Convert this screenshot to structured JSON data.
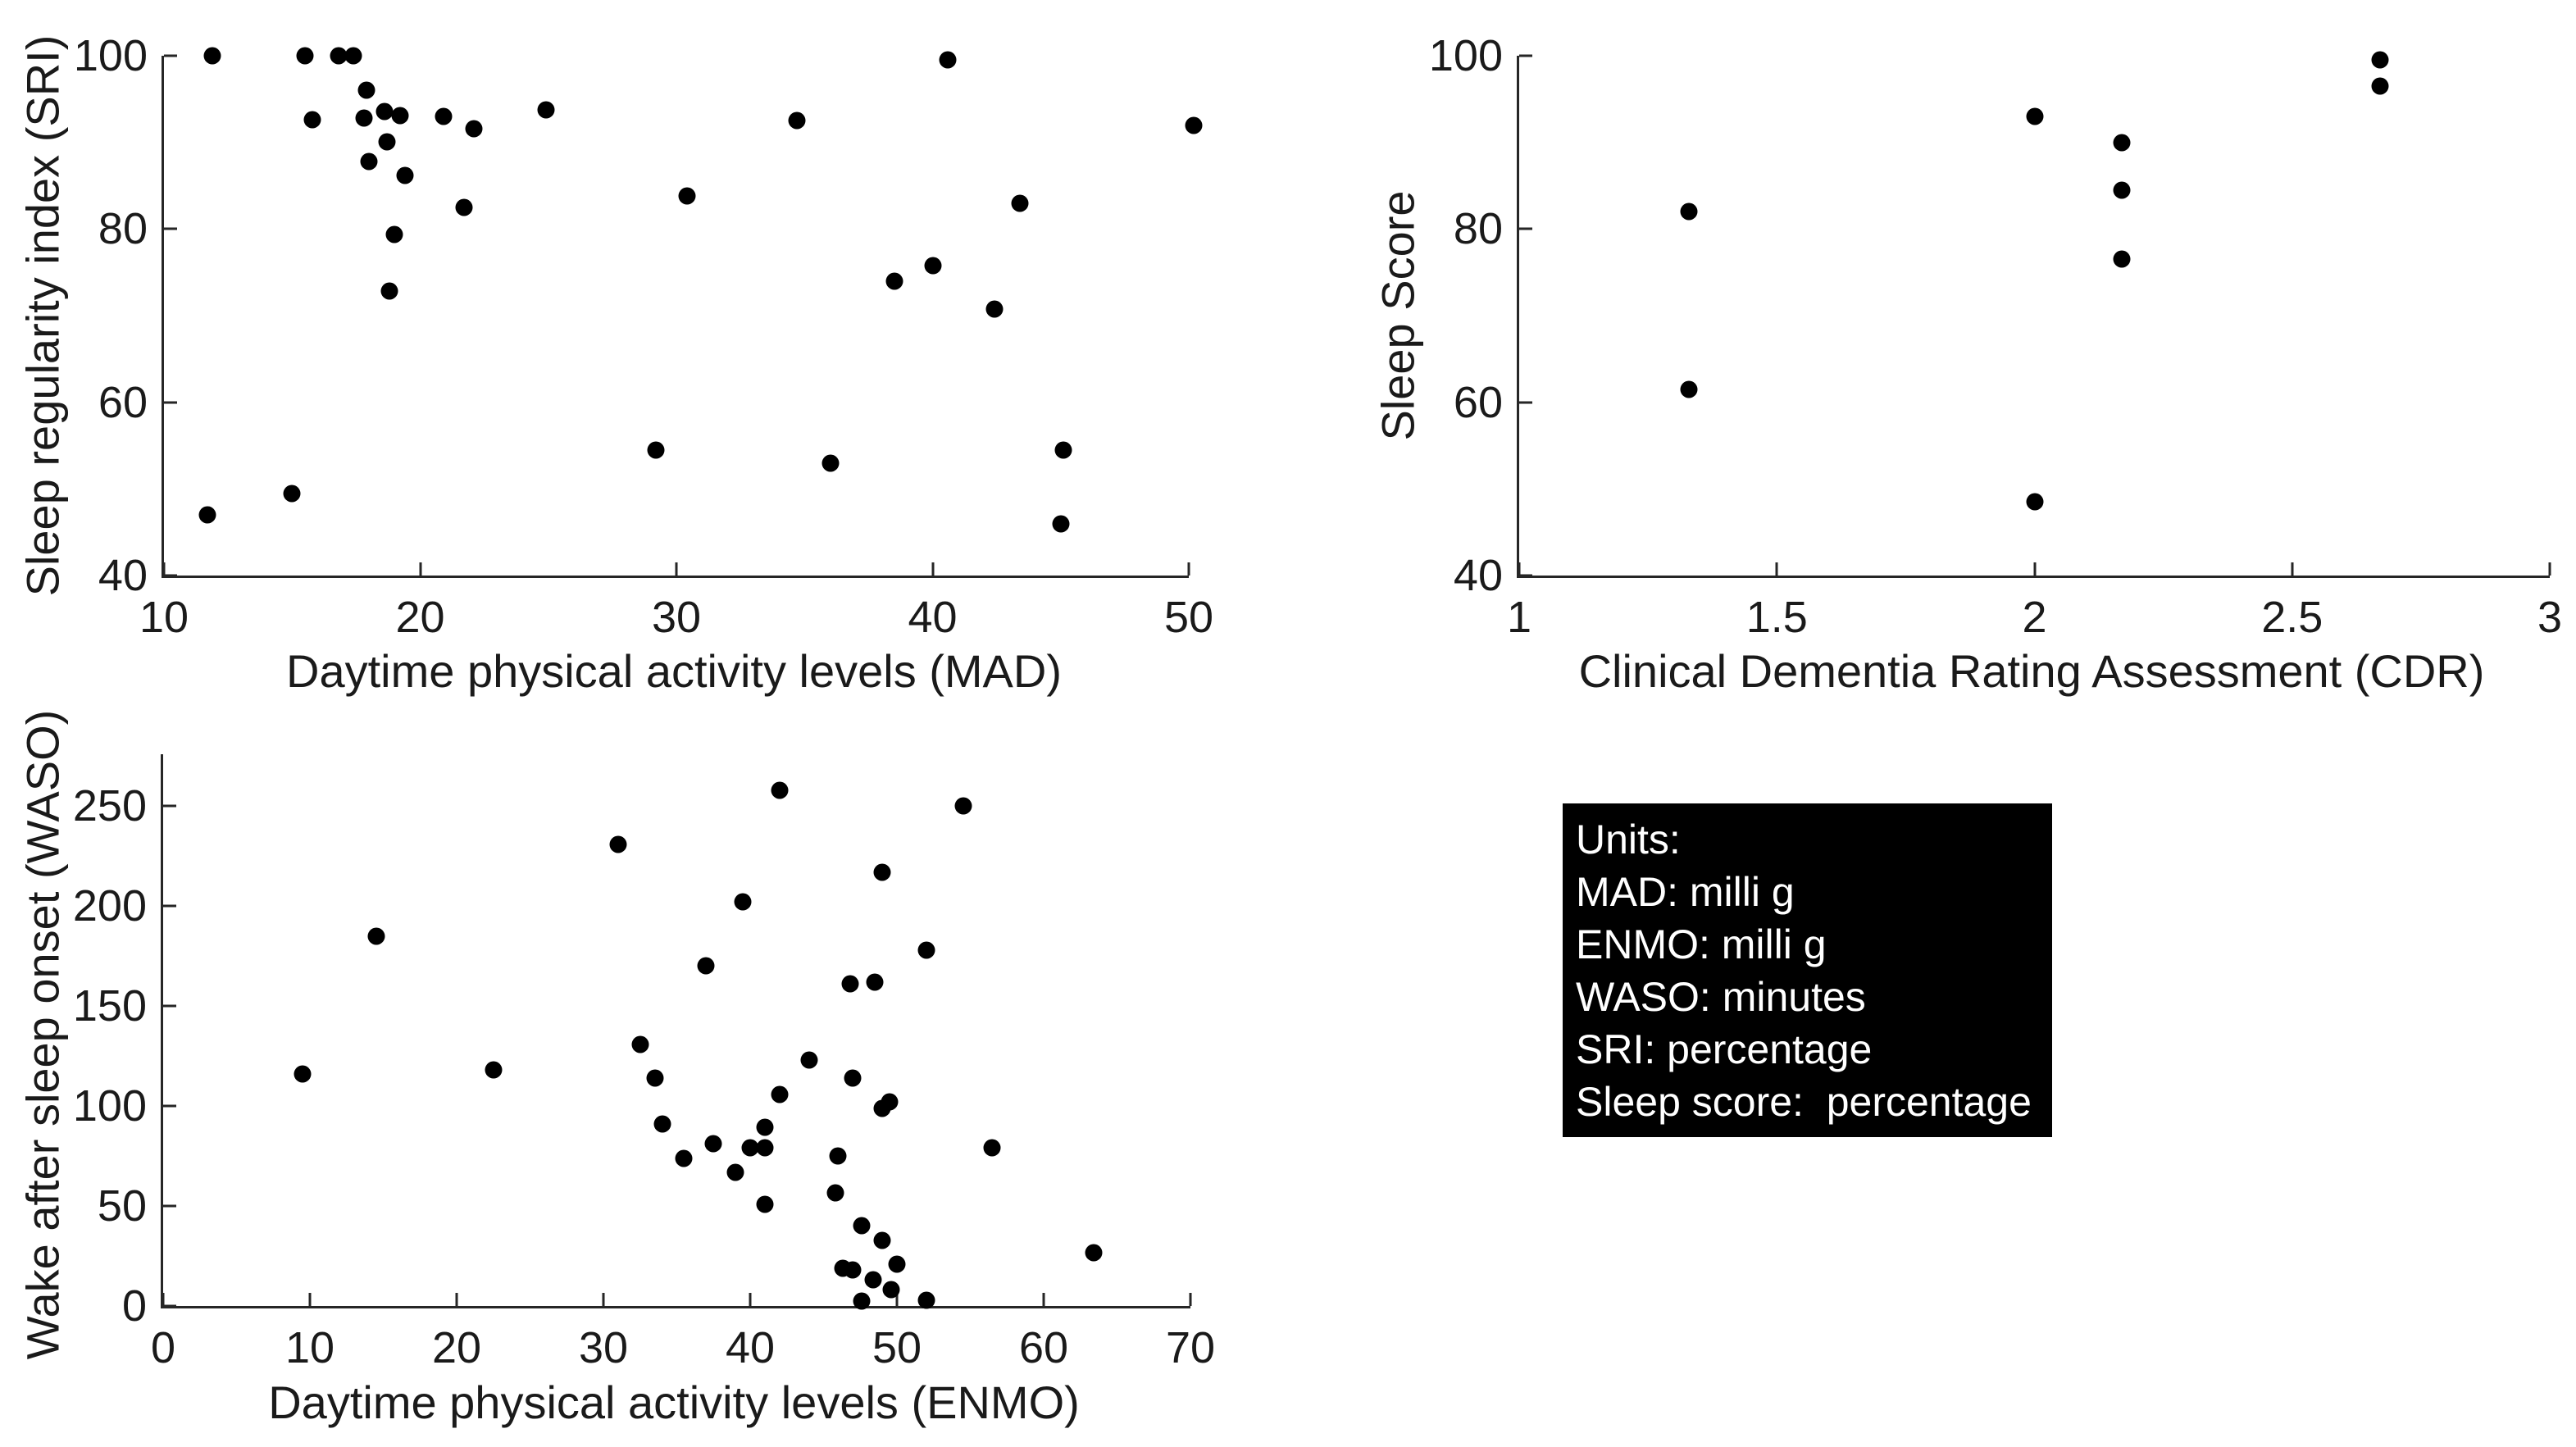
{
  "figure": {
    "background": "#ffffff"
  },
  "colors": {
    "marker": "#000000",
    "axis": "#262626",
    "text": "#1a1a1a",
    "units_box_bg": "#000000",
    "units_box_text": "#ffffff"
  },
  "chart_data": [
    {
      "type": "scatter",
      "title": "",
      "xlabel": "Daytime physical activity levels (MAD)",
      "ylabel": "Sleep regularity index (SRI)",
      "xlim": [
        10,
        50
      ],
      "ylim": [
        40,
        100
      ],
      "xticks": [
        10,
        20,
        30,
        40,
        50
      ],
      "yticks": [
        40,
        60,
        80,
        100
      ],
      "grid": false,
      "legend": null,
      "points": [
        [
          11.9,
          100
        ],
        [
          15.5,
          100
        ],
        [
          16.8,
          100
        ],
        [
          17.4,
          100
        ],
        [
          17.9,
          96
        ],
        [
          15.8,
          92.6
        ],
        [
          17.8,
          92.8
        ],
        [
          18.6,
          93.6
        ],
        [
          19.2,
          93.1
        ],
        [
          20.9,
          93
        ],
        [
          22.1,
          91.6
        ],
        [
          24.9,
          93.8
        ],
        [
          18.7,
          90.1
        ],
        [
          18.0,
          87.8
        ],
        [
          19.4,
          86.2
        ],
        [
          21.7,
          82.5
        ],
        [
          19.0,
          79.4
        ],
        [
          18.8,
          72.8
        ],
        [
          40.6,
          99.5
        ],
        [
          34.7,
          92.5
        ],
        [
          50.2,
          92
        ],
        [
          30.4,
          83.8
        ],
        [
          43.4,
          83
        ],
        [
          40.0,
          75.8
        ],
        [
          38.5,
          74
        ],
        [
          42.4,
          70.8
        ],
        [
          29.2,
          54.5
        ],
        [
          36.0,
          53
        ],
        [
          45.1,
          54.5
        ],
        [
          45.0,
          46
        ],
        [
          15.0,
          49.5
        ],
        [
          11.7,
          47
        ]
      ]
    },
    {
      "type": "scatter",
      "title": "",
      "xlabel": "Clinical Dementia Rating Assessment (CDR)",
      "ylabel": "Sleep Score",
      "xlim": [
        1,
        3
      ],
      "ylim": [
        40,
        100
      ],
      "xticks": [
        1,
        1.5,
        2,
        2.5,
        3
      ],
      "yticks": [
        40,
        60,
        80,
        100
      ],
      "grid": false,
      "legend": null,
      "points": [
        [
          1.33,
          82
        ],
        [
          1.33,
          61.5
        ],
        [
          2.0,
          93
        ],
        [
          2.0,
          48.5
        ],
        [
          2.17,
          90
        ],
        [
          2.17,
          84.5
        ],
        [
          2.17,
          76.5
        ],
        [
          2.67,
          99.5
        ],
        [
          2.67,
          96.5
        ]
      ]
    },
    {
      "type": "scatter",
      "title": "",
      "xlabel": "Daytime physical activity levels (ENMO)",
      "ylabel": "Wake after sleep onset (WASO)",
      "xlim": [
        0,
        70
      ],
      "ylim": [
        0,
        276
      ],
      "xticks": [
        0,
        10,
        20,
        30,
        40,
        50,
        60,
        70
      ],
      "yticks": [
        0,
        50,
        100,
        150,
        200,
        250
      ],
      "grid": false,
      "legend": null,
      "points": [
        [
          42,
          258
        ],
        [
          54.5,
          250
        ],
        [
          31,
          231
        ],
        [
          49,
          217
        ],
        [
          39.5,
          202
        ],
        [
          14.5,
          185
        ],
        [
          52,
          178
        ],
        [
          37,
          170
        ],
        [
          46.8,
          161
        ],
        [
          48.5,
          162
        ],
        [
          32.5,
          131
        ],
        [
          44,
          123
        ],
        [
          9.5,
          116
        ],
        [
          22.5,
          118
        ],
        [
          33.5,
          114
        ],
        [
          47,
          114
        ],
        [
          42,
          106
        ],
        [
          49,
          99
        ],
        [
          49.5,
          102
        ],
        [
          34,
          91
        ],
        [
          41,
          89.5
        ],
        [
          40,
          79
        ],
        [
          41,
          79
        ],
        [
          37.5,
          81
        ],
        [
          35.5,
          74
        ],
        [
          46,
          75
        ],
        [
          39,
          67
        ],
        [
          56.5,
          79
        ],
        [
          45.8,
          56.5
        ],
        [
          41,
          51
        ],
        [
          47.6,
          40
        ],
        [
          49,
          33
        ],
        [
          63.4,
          26.5
        ],
        [
          50,
          21
        ],
        [
          46.3,
          19
        ],
        [
          47,
          18
        ],
        [
          48.4,
          13
        ],
        [
          49.6,
          8
        ],
        [
          47.6,
          2.5
        ],
        [
          52,
          3
        ]
      ]
    }
  ],
  "units_box": {
    "lines": [
      "Units:",
      "MAD: milli g",
      "ENMO: milli g",
      "WASO: minutes",
      "SRI: percentage",
      "Sleep score:  percentage"
    ]
  }
}
